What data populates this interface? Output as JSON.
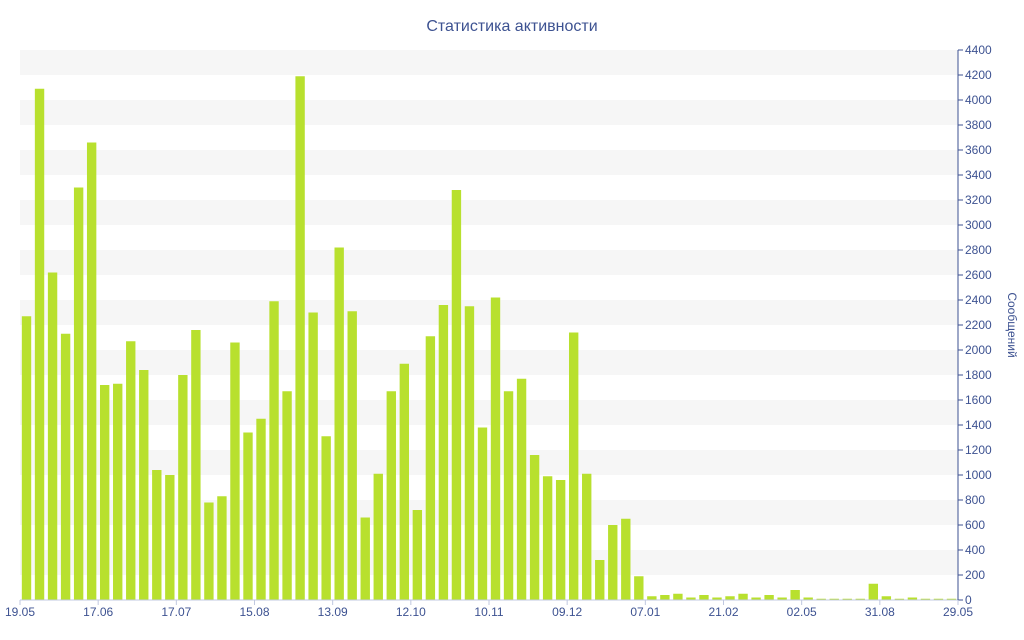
{
  "chart_data": {
    "type": "bar",
    "title": "Статистика активности",
    "ylabel": "Сообщений",
    "xlabel": "",
    "ylim": [
      0,
      4400
    ],
    "y_ticks": [
      0,
      200,
      400,
      600,
      800,
      1000,
      1200,
      1400,
      1600,
      1800,
      2000,
      2200,
      2400,
      2600,
      2800,
      3000,
      3200,
      3400,
      3600,
      3800,
      4000,
      4200,
      4400
    ],
    "y_axis_position": "right",
    "grid": "horizontal alternating bands",
    "x_tick_labels": [
      "19.05",
      "17.06",
      "17.07",
      "15.08",
      "13.09",
      "12.10",
      "10.11",
      "09.12",
      "07.01",
      "21.02",
      "02.05",
      "31.08",
      "29.05"
    ],
    "bar_color": "#b8e02e",
    "values": [
      2270,
      4090,
      2620,
      2130,
      3300,
      3660,
      1720,
      1730,
      2070,
      1840,
      1040,
      1000,
      1800,
      2160,
      780,
      830,
      2060,
      1340,
      1450,
      2390,
      1670,
      4190,
      2300,
      1310,
      2820,
      2310,
      660,
      1010,
      1670,
      1890,
      720,
      2110,
      2360,
      3280,
      2350,
      1380,
      2420,
      1670,
      1770,
      1160,
      990,
      960,
      2140,
      1010,
      320,
      600,
      650,
      190,
      30,
      40,
      50,
      20,
      40,
      20,
      30,
      50,
      20,
      40,
      20,
      80,
      20,
      10,
      10,
      10,
      10,
      130,
      30,
      10,
      20,
      10,
      10,
      10
    ]
  }
}
